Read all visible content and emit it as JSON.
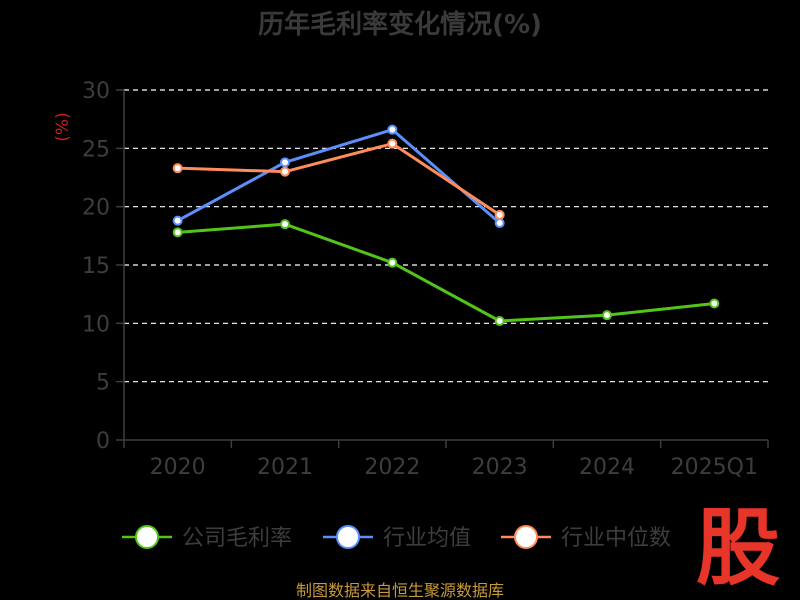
{
  "chart_data": {
    "type": "line",
    "title": "历年毛利率变化情况(%)",
    "ylabel": "(%)",
    "categories": [
      "2020",
      "2021",
      "2022",
      "2023",
      "2024",
      "2025Q1"
    ],
    "ylim": [
      0,
      30
    ],
    "yticks": [
      0,
      5,
      10,
      15,
      20,
      25,
      30
    ],
    "grid": true,
    "legend_position": "bottom",
    "series": [
      {
        "name": "公司毛利率",
        "color": "#52c41a",
        "values": [
          17.8,
          18.5,
          15.2,
          10.2,
          10.7,
          11.7
        ]
      },
      {
        "name": "行业均值",
        "color": "#5b8ff9",
        "values": [
          18.8,
          23.8,
          26.6,
          18.6,
          null,
          null
        ]
      },
      {
        "name": "行业中位数",
        "color": "#ff8c5a",
        "values": [
          23.3,
          23.0,
          25.4,
          19.3,
          null,
          null
        ]
      }
    ]
  },
  "footer": {
    "source": "制图数据来自恒生聚源数据库",
    "brand_mark": "股"
  }
}
